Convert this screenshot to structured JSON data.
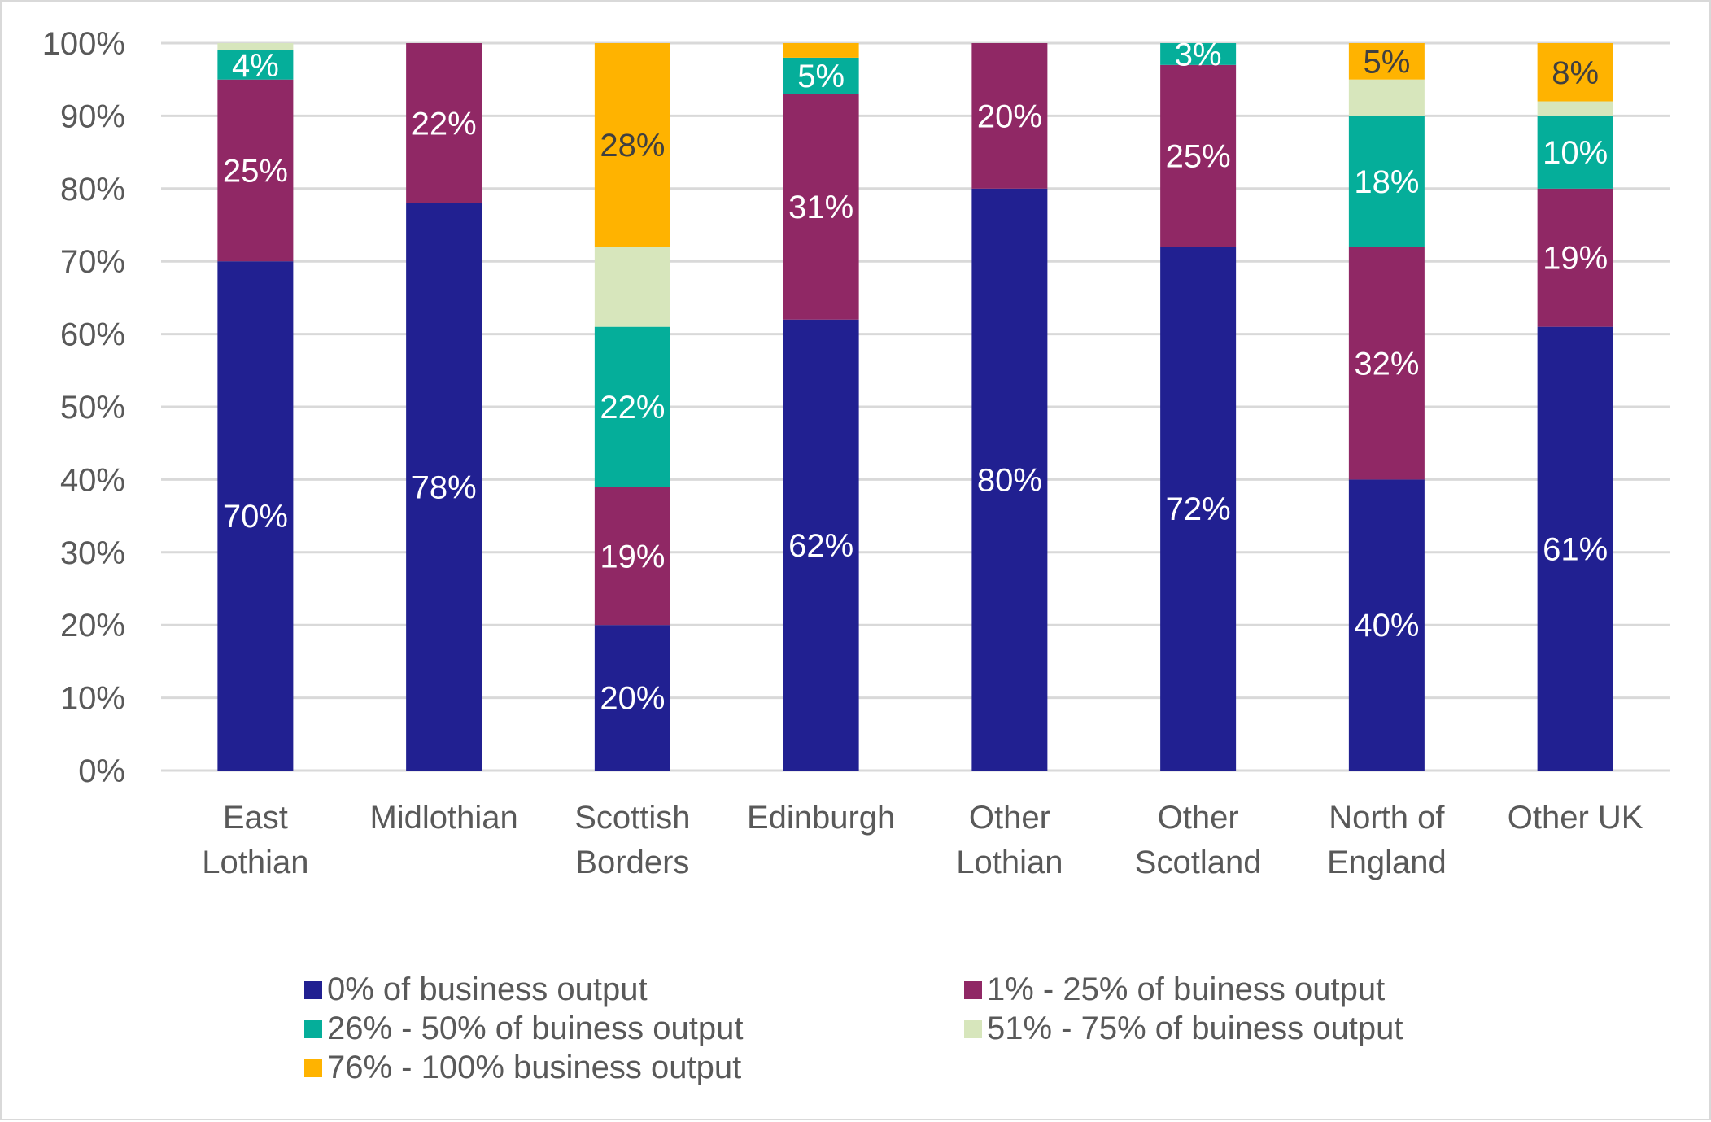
{
  "chart_data": {
    "type": "bar",
    "stacked": true,
    "title": "",
    "xlabel": "",
    "ylabel": "",
    "ylim": [
      0,
      100
    ],
    "y_ticks": [
      "0%",
      "10%",
      "20%",
      "30%",
      "40%",
      "50%",
      "60%",
      "70%",
      "80%",
      "90%",
      "100%"
    ],
    "grid": true,
    "legend_position": "bottom",
    "categories": [
      [
        "East",
        "Lothian"
      ],
      [
        "Midlothian"
      ],
      [
        "Scottish",
        "Borders"
      ],
      [
        "Edinburgh"
      ],
      [
        "Other",
        "Lothian"
      ],
      [
        "Other",
        "Scotland"
      ],
      [
        "North of",
        "England"
      ],
      [
        "Other UK"
      ]
    ],
    "series": [
      {
        "name": "0% of business output",
        "color": "#212091",
        "label_color": "#ffffff",
        "values": [
          70,
          78,
          20,
          62,
          80,
          72,
          40,
          61
        ],
        "labels": [
          "70%",
          "78%",
          "20%",
          "62%",
          "80%",
          "72%",
          "40%",
          "61%"
        ]
      },
      {
        "name": "1% - 25% of buiness output",
        "color": "#902865",
        "label_color": "#ffffff",
        "values": [
          25,
          22,
          19,
          31,
          20,
          25,
          32,
          19
        ],
        "labels": [
          "25%",
          "22%",
          "19%",
          "31%",
          "20%",
          "25%",
          "32%",
          "19%"
        ]
      },
      {
        "name": "26% - 50% of buiness output",
        "color": "#05AE9A",
        "label_color": "#ffffff",
        "values": [
          4,
          0,
          22,
          5,
          0,
          3,
          18,
          10
        ],
        "labels": [
          "4%",
          "",
          "22%",
          "5%",
          "",
          "3%",
          "18%",
          "10%"
        ]
      },
      {
        "name": "51% - 75% of buiness output",
        "color": "#D7E6BC",
        "label_color": "#404040",
        "values": [
          1,
          0,
          11,
          0,
          0,
          0,
          5,
          2
        ],
        "labels": [
          "",
          "",
          "",
          "",
          "",
          "",
          "",
          ""
        ]
      },
      {
        "name": "76% - 100% business output",
        "color": "#FFB300",
        "label_color": "#404040",
        "values": [
          0,
          0,
          28,
          2,
          0,
          0,
          5,
          8
        ],
        "labels": [
          "",
          "",
          "28%",
          "",
          "",
          "",
          "5%",
          "8%"
        ]
      }
    ]
  }
}
